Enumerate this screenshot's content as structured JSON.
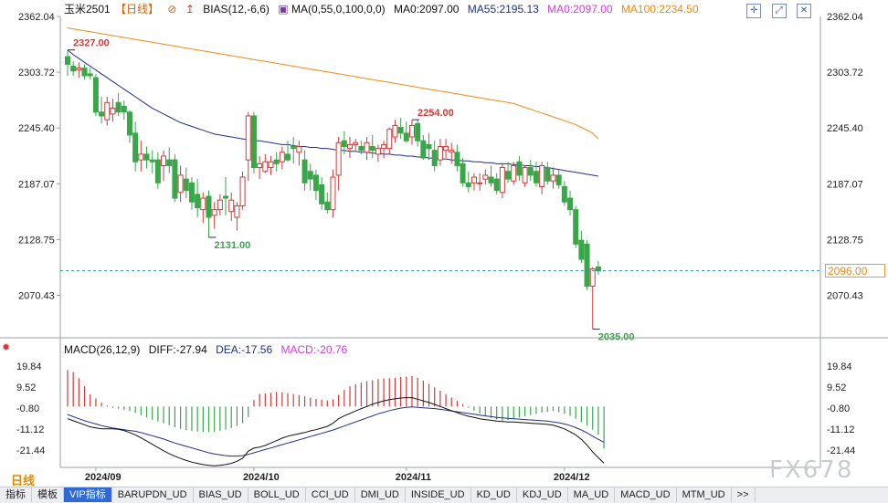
{
  "header": {
    "symbol": "玉米2501",
    "period": "【日线】",
    "bias": "BIAS(12,-6,6)",
    "ma_params": "MA(0,55,0,100,0,0)",
    "ma0": "MA0:2097.00",
    "ma55": "MA55:2195.13",
    "ma0b": "MA0:2097.00",
    "ma100": "MA100:2234.50"
  },
  "macd_header": {
    "title": "MACD(26,12,9)",
    "diff": "DIFF:-27.94",
    "dea": "DEA:-17.56",
    "macd": "MACD:-20.76"
  },
  "current_price": "2096.00",
  "watermark": "FX678",
  "period_label": "日线",
  "tabs": [
    "指标",
    "模板",
    "VIP指标",
    "BARUPDN_UD",
    "BIAS_UD",
    "BOLL_UD",
    "CCI_UD",
    "DMI_UD",
    "INSIDE_UD",
    "KD_UD",
    "KDJ_UD",
    "MA_UD",
    "MACD_UD",
    "MTM_UD",
    ">>"
  ],
  "active_tab": 2,
  "colors": {
    "up": "#d23b3b",
    "down": "#3aa64a",
    "ma55": "#1f2f8a",
    "ma100": "#f08a10",
    "dif": "#111111",
    "dea": "#1f2f8a",
    "last": "#2a8fa0"
  },
  "chart_data": [
    {
      "type": "candlestick",
      "y_ticks": [
        "2362.04",
        "2303.72",
        "2245.40",
        "2187.07",
        "2128.75",
        "2070.43"
      ],
      "ylim": [
        2026.0,
        2362.04
      ],
      "x_ticks": [
        "2024/09",
        "2024/10",
        "2024/11",
        "2024/12"
      ],
      "annotations": [
        {
          "label": "2327.00",
          "value": 2327,
          "bar": 0,
          "color": "up"
        },
        {
          "label": "2131.00",
          "value": 2131,
          "bar": 25,
          "color": "down"
        },
        {
          "label": "2254.00",
          "value": 2254,
          "bar": 61,
          "color": "up"
        },
        {
          "label": "2035.00",
          "value": 2035,
          "bar": 93,
          "color": "down"
        }
      ],
      "last_price": 2096,
      "ohlc": [
        [
          2320,
          2327,
          2300,
          2312
        ],
        [
          2310,
          2315,
          2300,
          2305
        ],
        [
          2306,
          2314,
          2298,
          2308
        ],
        [
          2308,
          2312,
          2296,
          2300
        ],
        [
          2302,
          2308,
          2296,
          2300
        ],
        [
          2298,
          2302,
          2258,
          2262
        ],
        [
          2262,
          2278,
          2250,
          2258
        ],
        [
          2254,
          2278,
          2248,
          2272
        ],
        [
          2260,
          2276,
          2252,
          2266
        ],
        [
          2272,
          2282,
          2258,
          2262
        ],
        [
          2268,
          2274,
          2254,
          2262
        ],
        [
          2262,
          2264,
          2230,
          2238
        ],
        [
          2240,
          2252,
          2200,
          2210
        ],
        [
          2212,
          2232,
          2200,
          2218
        ],
        [
          2218,
          2226,
          2203,
          2212
        ],
        [
          2212,
          2222,
          2198,
          2210
        ],
        [
          2212,
          2220,
          2182,
          2188
        ],
        [
          2206,
          2222,
          2190,
          2216
        ],
        [
          2212,
          2225,
          2198,
          2206
        ],
        [
          2212,
          2218,
          2168,
          2172
        ],
        [
          2178,
          2206,
          2168,
          2196
        ],
        [
          2192,
          2204,
          2172,
          2180
        ],
        [
          2188,
          2194,
          2160,
          2168
        ],
        [
          2176,
          2192,
          2152,
          2162
        ],
        [
          2160,
          2178,
          2146,
          2172
        ],
        [
          2174,
          2180,
          2131,
          2152
        ],
        [
          2154,
          2168,
          2140,
          2160
        ],
        [
          2160,
          2176,
          2154,
          2170
        ],
        [
          2174,
          2194,
          2154,
          2172
        ],
        [
          2158,
          2178,
          2148,
          2170
        ],
        [
          2152,
          2168,
          2138,
          2164
        ],
        [
          2164,
          2200,
          2160,
          2194
        ],
        [
          2212,
          2262,
          2190,
          2258
        ],
        [
          2258,
          2262,
          2198,
          2204
        ],
        [
          2204,
          2216,
          2192,
          2208
        ],
        [
          2200,
          2218,
          2198,
          2210
        ],
        [
          2204,
          2216,
          2196,
          2210
        ],
        [
          2212,
          2220,
          2200,
          2208
        ],
        [
          2210,
          2226,
          2202,
          2220
        ],
        [
          2218,
          2232,
          2210,
          2212
        ],
        [
          2226,
          2236,
          2208,
          2224
        ],
        [
          2220,
          2232,
          2206,
          2226
        ],
        [
          2212,
          2222,
          2180,
          2188
        ],
        [
          2200,
          2208,
          2180,
          2192
        ],
        [
          2196,
          2202,
          2170,
          2180
        ],
        [
          2186,
          2194,
          2160,
          2166
        ],
        [
          2168,
          2178,
          2156,
          2160
        ],
        [
          2160,
          2202,
          2152,
          2194
        ],
        [
          2196,
          2236,
          2180,
          2230
        ],
        [
          2232,
          2242,
          2218,
          2226
        ],
        [
          2224,
          2236,
          2214,
          2228
        ],
        [
          2228,
          2234,
          2222,
          2230
        ],
        [
          2226,
          2232,
          2218,
          2222
        ],
        [
          2220,
          2236,
          2212,
          2230
        ],
        [
          2226,
          2238,
          2214,
          2222
        ],
        [
          2218,
          2228,
          2210,
          2224
        ],
        [
          2224,
          2232,
          2214,
          2228
        ],
        [
          2224,
          2246,
          2218,
          2244
        ],
        [
          2236,
          2254,
          2230,
          2248
        ],
        [
          2246,
          2256,
          2234,
          2240
        ],
        [
          2240,
          2252,
          2230,
          2232
        ],
        [
          2236,
          2254,
          2228,
          2248
        ],
        [
          2250,
          2254,
          2226,
          2232
        ],
        [
          2232,
          2238,
          2212,
          2214
        ],
        [
          2228,
          2240,
          2212,
          2224
        ],
        [
          2222,
          2232,
          2200,
          2206
        ],
        [
          2212,
          2234,
          2206,
          2226
        ],
        [
          2222,
          2234,
          2214,
          2226
        ],
        [
          2220,
          2230,
          2208,
          2222
        ],
        [
          2220,
          2228,
          2200,
          2206
        ],
        [
          2208,
          2214,
          2184,
          2188
        ],
        [
          2188,
          2200,
          2178,
          2184
        ],
        [
          2188,
          2198,
          2180,
          2194
        ],
        [
          2188,
          2198,
          2180,
          2188
        ],
        [
          2192,
          2202,
          2186,
          2196
        ],
        [
          2194,
          2206,
          2184,
          2188
        ],
        [
          2192,
          2198,
          2176,
          2180
        ],
        [
          2178,
          2208,
          2172,
          2204
        ],
        [
          2200,
          2210,
          2188,
          2192
        ],
        [
          2190,
          2210,
          2186,
          2206
        ],
        [
          2210,
          2216,
          2190,
          2196
        ],
        [
          2188,
          2206,
          2184,
          2204
        ],
        [
          2204,
          2212,
          2190,
          2196
        ],
        [
          2200,
          2210,
          2184,
          2188
        ],
        [
          2184,
          2210,
          2176,
          2206
        ],
        [
          2204,
          2210,
          2186,
          2190
        ],
        [
          2190,
          2204,
          2182,
          2196
        ],
        [
          2196,
          2202,
          2182,
          2186
        ],
        [
          2184,
          2190,
          2164,
          2168
        ],
        [
          2172,
          2180,
          2154,
          2160
        ],
        [
          2160,
          2164,
          2120,
          2124
        ],
        [
          2128,
          2138,
          2104,
          2108
        ],
        [
          2124,
          2128,
          2076,
          2080
        ],
        [
          2080,
          2100,
          2035,
          2098
        ],
        [
          2100,
          2106,
          2092,
          2096
        ]
      ],
      "ma55": [
        2327,
        2322,
        2318,
        2314,
        2310,
        2306,
        2302,
        2298,
        2294,
        2290,
        2286,
        2282,
        2278,
        2274,
        2270,
        2266,
        2263,
        2260,
        2257,
        2254,
        2251,
        2249,
        2247,
        2245,
        2243,
        2241,
        2239,
        2238,
        2237,
        2236,
        2235,
        2234,
        2233,
        2232,
        2232,
        2231,
        2230,
        2229,
        2228,
        2228,
        2227,
        2226,
        2226,
        2225,
        2225,
        2224,
        2224,
        2223,
        2222,
        2222,
        2221,
        2221,
        2220,
        2220,
        2219,
        2219,
        2218,
        2218,
        2217,
        2217,
        2216,
        2216,
        2215,
        2215,
        2214,
        2214,
        2213,
        2213,
        2212,
        2212,
        2211,
        2211,
        2210,
        2210,
        2209,
        2209,
        2208,
        2208,
        2208,
        2207,
        2207,
        2206,
        2206,
        2205,
        2205,
        2204,
        2203,
        2202,
        2201,
        2200,
        2199,
        2198,
        2197,
        2196,
        2195
      ],
      "ma100": [
        2350,
        2349,
        2348,
        2347,
        2346,
        2345,
        2344,
        2343,
        2342,
        2341,
        2340,
        2339,
        2338,
        2337,
        2336,
        2335,
        2334,
        2333,
        2332,
        2331,
        2330,
        2329,
        2328,
        2327,
        2326,
        2325,
        2324,
        2323,
        2322,
        2321,
        2320,
        2319,
        2318,
        2317,
        2316,
        2315,
        2314,
        2313,
        2312,
        2311,
        2310,
        2309,
        2308,
        2307,
        2306,
        2305,
        2304,
        2303,
        2302,
        2301,
        2300,
        2299,
        2298,
        2297,
        2296,
        2295,
        2294,
        2293,
        2292,
        2291,
        2290,
        2289,
        2288,
        2287,
        2286,
        2285,
        2284,
        2283,
        2282,
        2281,
        2280,
        2279,
        2278,
        2277,
        2276,
        2275,
        2274,
        2273,
        2272,
        2271,
        2269,
        2267,
        2265,
        2263,
        2261,
        2259,
        2257,
        2255,
        2253,
        2251,
        2249,
        2246,
        2243,
        2240,
        2234
      ]
    },
    {
      "type": "macd",
      "y_ticks": [
        "19.84",
        "9.52",
        "-0.80",
        "-11.12",
        "-21.44"
      ],
      "ylim": [
        -30.0,
        24.0
      ],
      "histogram": [
        18,
        17,
        14,
        10,
        6,
        4,
        2,
        0.5,
        -0.6,
        -1.1,
        -1.6,
        -2.2,
        -3.0,
        -4.2,
        -5.4,
        -6.5,
        -7.4,
        -8.3,
        -9.2,
        -10.2,
        -11.0,
        -11.6,
        -12.0,
        -12.3,
        -12.5,
        -12.6,
        -12.4,
        -12.0,
        -11.4,
        -10.6,
        -9.6,
        -8.2,
        -5.2,
        3.2,
        6.2,
        6.5,
        6.8,
        7.2,
        7.1,
        6.6,
        6.2,
        5.6,
        5.0,
        4.4,
        3.8,
        3.4,
        3.0,
        3.6,
        5.8,
        8.2,
        10.0,
        11.0,
        11.8,
        12.5,
        13.0,
        13.5,
        13.8,
        14.0,
        14.2,
        14.6,
        14.8,
        15.0,
        14.2,
        12.8,
        11.2,
        9.5,
        7.8,
        6.1,
        4.4,
        2.8,
        1.2,
        -0.6,
        -2.0,
        -3.4,
        -4.6,
        -5.6,
        -6.4,
        -7.0,
        -6.6,
        -6.0,
        -5.4,
        -4.8,
        -4.2,
        -3.6,
        -3.0,
        -2.6,
        -2.2,
        -2.8,
        -3.6,
        -4.6,
        -6.0,
        -7.6,
        -9.4,
        -11.4,
        -14.0,
        -20.76
      ],
      "dif": [
        -6,
        -7,
        -8,
        -9,
        -10,
        -10.5,
        -11,
        -11,
        -11,
        -11.2,
        -11.8,
        -12.8,
        -14,
        -15.4,
        -17,
        -18.6,
        -20.2,
        -21.8,
        -23.2,
        -24.5,
        -25.6,
        -26.6,
        -27.4,
        -28,
        -28.6,
        -29,
        -29.2,
        -29,
        -28.6,
        -28,
        -27,
        -25.5,
        -22,
        -20.5,
        -20,
        -19.2,
        -18,
        -16.8,
        -15.6,
        -14.6,
        -14,
        -13.4,
        -12.8,
        -12,
        -11.4,
        -10.6,
        -9.8,
        -8.2,
        -6,
        -4.6,
        -3.4,
        -2.2,
        -1,
        0,
        1.2,
        2,
        2.8,
        3.4,
        3.8,
        4.2,
        4.4,
        4.4,
        3.6,
        2.8,
        2,
        1,
        0,
        -1,
        -2,
        -3,
        -4,
        -4.8,
        -5.4,
        -6,
        -6.4,
        -6.8,
        -7.2,
        -7.4,
        -7.6,
        -7.6,
        -7.8,
        -8,
        -8.2,
        -8.4,
        -8.6,
        -8.8,
        -9.2,
        -10,
        -11,
        -12.4,
        -14,
        -16.2,
        -19,
        -22.4,
        -25.2,
        -27.94
      ],
      "dea": [
        -4,
        -5,
        -6,
        -7,
        -7.8,
        -8.6,
        -9.4,
        -10,
        -10.6,
        -11,
        -11.4,
        -11.8,
        -12.2,
        -12.8,
        -13.6,
        -14.4,
        -15.2,
        -16,
        -17,
        -18,
        -18.8,
        -19.6,
        -20.4,
        -21.2,
        -22,
        -22.8,
        -23.4,
        -23.8,
        -24.2,
        -24.4,
        -24.4,
        -24.2,
        -23.6,
        -22.8,
        -22,
        -21.2,
        -20.4,
        -19.6,
        -18.8,
        -18,
        -17.2,
        -16.4,
        -15.6,
        -14.8,
        -14,
        -13.2,
        -12.4,
        -11.6,
        -10.6,
        -9.6,
        -8.6,
        -7.6,
        -6.6,
        -5.6,
        -4.6,
        -3.6,
        -2.8,
        -2,
        -1.4,
        -0.8,
        -0.4,
        -0.2,
        -0.4,
        -0.6,
        -0.8,
        -1,
        -1.4,
        -1.8,
        -2.2,
        -2.6,
        -3,
        -3.4,
        -3.8,
        -4.2,
        -4.6,
        -5,
        -5.4,
        -5.6,
        -5.8,
        -6,
        -6.2,
        -6.4,
        -6.6,
        -6.8,
        -7,
        -7.2,
        -7.6,
        -8,
        -8.6,
        -9.4,
        -10.4,
        -11.6,
        -13,
        -14.6,
        -16.2,
        -17.56
      ]
    }
  ]
}
